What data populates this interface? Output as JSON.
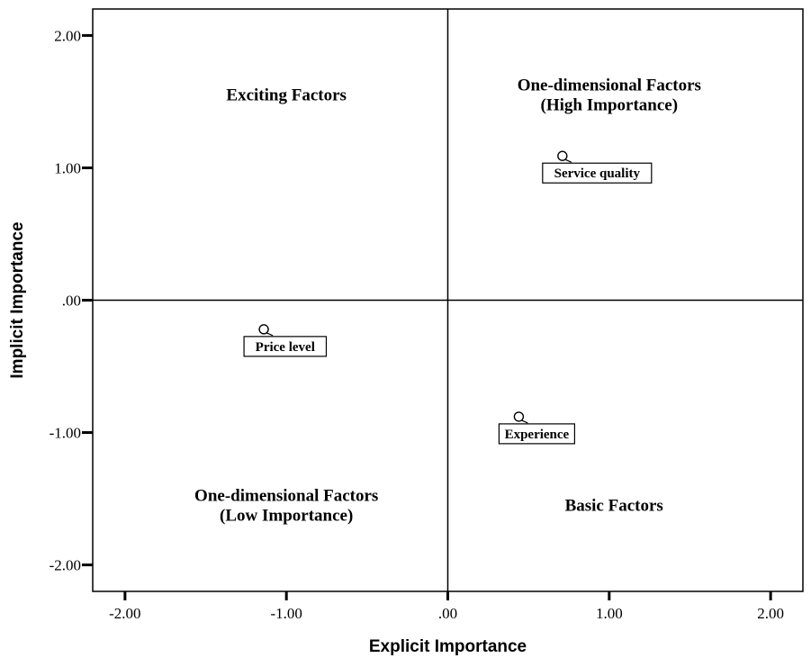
{
  "chart_data": {
    "type": "scatter",
    "xlabel": "Explicit Importance",
    "ylabel": "Implicit Importance",
    "xlim": [
      -2.2,
      2.2
    ],
    "ylim": [
      -2.2,
      2.2
    ],
    "x_ticks": [
      -2.0,
      -1.0,
      0.0,
      1.0,
      2.0
    ],
    "x_tick_labels": [
      "-2.00",
      "-1.00",
      ".00",
      "1.00",
      "2.00"
    ],
    "y_ticks": [
      2.0,
      1.0,
      0.0,
      -1.0,
      -2.0
    ],
    "y_tick_labels": [
      "2.00",
      "1.00",
      ".00",
      "-1.00",
      "-2.00"
    ],
    "reference_lines": {
      "x": 0.0,
      "y": 0.0
    },
    "grid": false,
    "quadrant_labels": {
      "top_left": [
        "Exciting Factors"
      ],
      "top_right": [
        "One-dimensional Factors",
        "(High Importance)"
      ],
      "bottom_left": [
        "One-dimensional Factors",
        "(Low Importance)"
      ],
      "bottom_right": [
        "Basic Factors"
      ]
    },
    "points": [
      {
        "label": "Service quality",
        "x": 0.71,
        "y": 1.09
      },
      {
        "label": "Price level",
        "x": -1.14,
        "y": -0.22
      },
      {
        "label": "Experience",
        "x": 0.44,
        "y": -0.88
      }
    ]
  }
}
